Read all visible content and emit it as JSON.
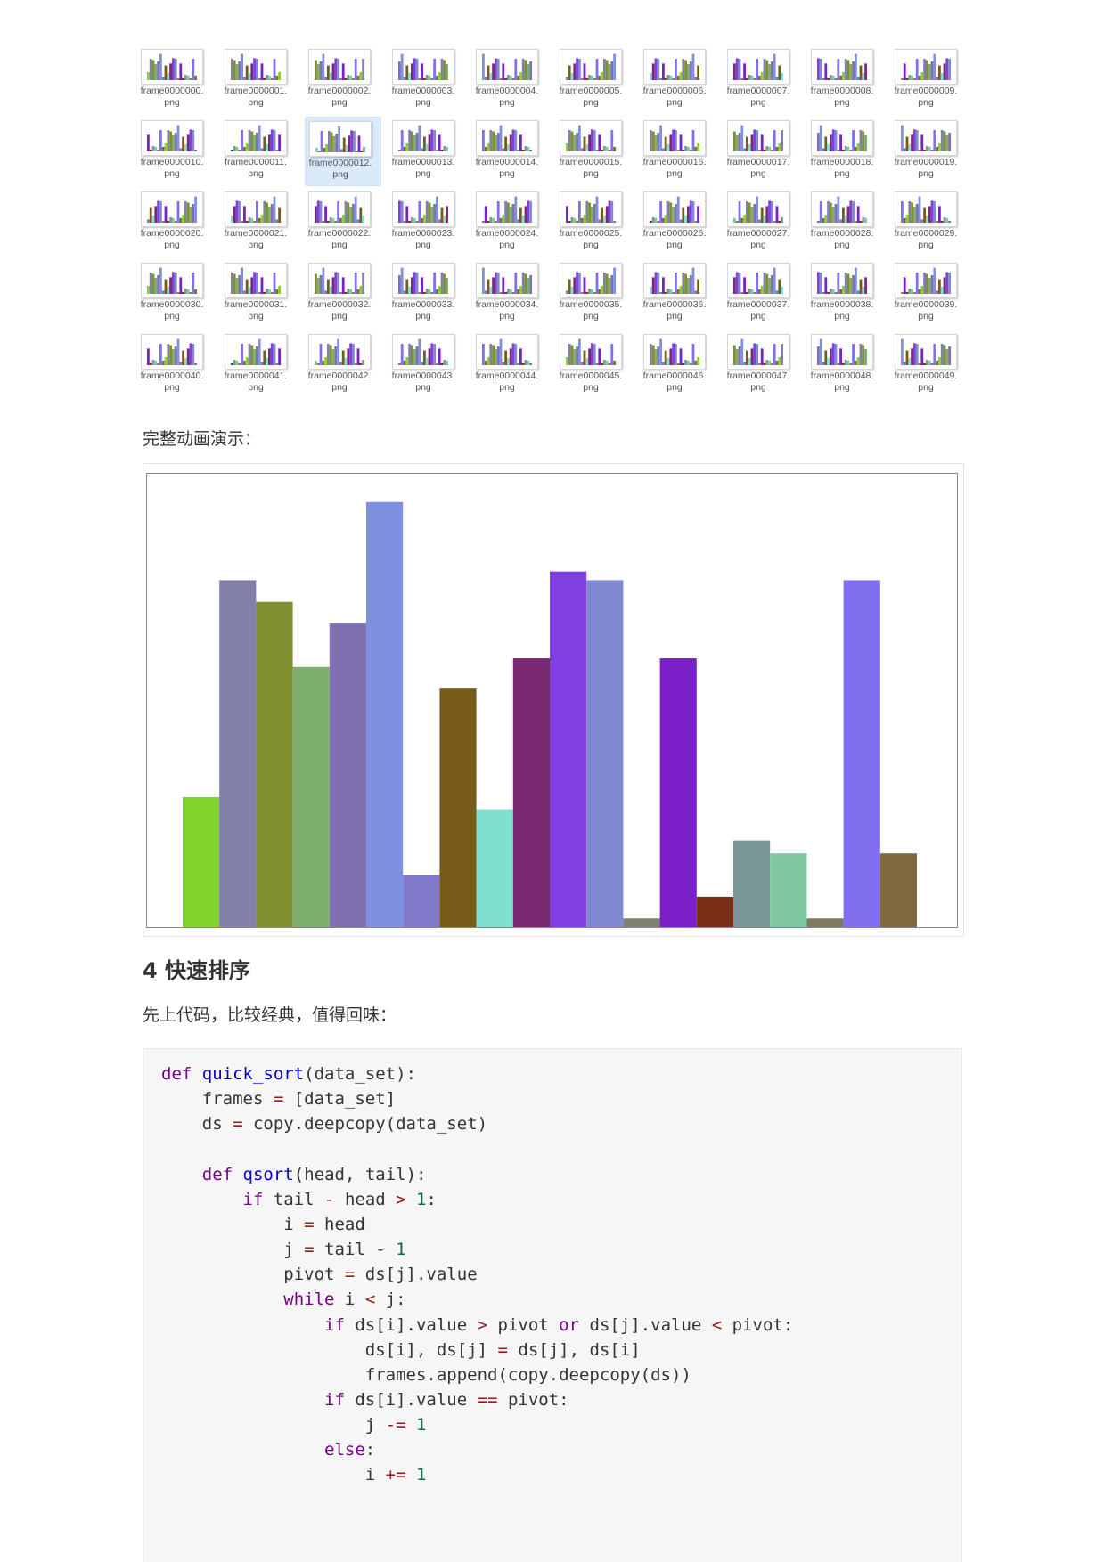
{
  "file_explorer": {
    "thumbnail_icon": "bar-chart-thumbnail-icon",
    "selected_index": 12,
    "files": [
      {
        "name_line1": "frame0000000.",
        "name_line2": "png"
      },
      {
        "name_line1": "frame0000001.",
        "name_line2": "png"
      },
      {
        "name_line1": "frame0000002.",
        "name_line2": "png"
      },
      {
        "name_line1": "frame0000003.",
        "name_line2": "png"
      },
      {
        "name_line1": "frame0000004.",
        "name_line2": "png"
      },
      {
        "name_line1": "frame0000005.",
        "name_line2": "png"
      },
      {
        "name_line1": "frame0000006.",
        "name_line2": "png"
      },
      {
        "name_line1": "frame0000007.",
        "name_line2": "png"
      },
      {
        "name_line1": "frame0000008.",
        "name_line2": "png"
      },
      {
        "name_line1": "frame0000009.",
        "name_line2": "png"
      },
      {
        "name_line1": "frame0000010.",
        "name_line2": "png"
      },
      {
        "name_line1": "frame0000011.",
        "name_line2": "png"
      },
      {
        "name_line1": "frame0000012.",
        "name_line2": "png"
      },
      {
        "name_line1": "frame0000013.",
        "name_line2": "png"
      },
      {
        "name_line1": "frame0000014.",
        "name_line2": "png"
      },
      {
        "name_line1": "frame0000015.",
        "name_line2": "png"
      },
      {
        "name_line1": "frame0000016.",
        "name_line2": "png"
      },
      {
        "name_line1": "frame0000017.",
        "name_line2": "png"
      },
      {
        "name_line1": "frame0000018.",
        "name_line2": "png"
      },
      {
        "name_line1": "frame0000019.",
        "name_line2": "png"
      },
      {
        "name_line1": "frame0000020.",
        "name_line2": "png"
      },
      {
        "name_line1": "frame0000021.",
        "name_line2": "png"
      },
      {
        "name_line1": "frame0000022.",
        "name_line2": "png"
      },
      {
        "name_line1": "frame0000023.",
        "name_line2": "png"
      },
      {
        "name_line1": "frame0000024.",
        "name_line2": "png"
      },
      {
        "name_line1": "frame0000025.",
        "name_line2": "png"
      },
      {
        "name_line1": "frame0000026.",
        "name_line2": "png"
      },
      {
        "name_line1": "frame0000027.",
        "name_line2": "png"
      },
      {
        "name_line1": "frame0000028.",
        "name_line2": "png"
      },
      {
        "name_line1": "frame0000029.",
        "name_line2": "png"
      },
      {
        "name_line1": "frame0000030.",
        "name_line2": "png"
      },
      {
        "name_line1": "frame0000031.",
        "name_line2": "png"
      },
      {
        "name_line1": "frame0000032.",
        "name_line2": "png"
      },
      {
        "name_line1": "frame0000033.",
        "name_line2": "png"
      },
      {
        "name_line1": "frame0000034.",
        "name_line2": "png"
      },
      {
        "name_line1": "frame0000035.",
        "name_line2": "png"
      },
      {
        "name_line1": "frame0000036.",
        "name_line2": "png"
      },
      {
        "name_line1": "frame0000037.",
        "name_line2": "png"
      },
      {
        "name_line1": "frame0000038.",
        "name_line2": "png"
      },
      {
        "name_line1": "frame0000039.",
        "name_line2": "png"
      },
      {
        "name_line1": "frame0000040.",
        "name_line2": "png"
      },
      {
        "name_line1": "frame0000041.",
        "name_line2": "png"
      },
      {
        "name_line1": "frame0000042.",
        "name_line2": "png"
      },
      {
        "name_line1": "frame0000043.",
        "name_line2": "png"
      },
      {
        "name_line1": "frame0000044.",
        "name_line2": "png"
      },
      {
        "name_line1": "frame0000045.",
        "name_line2": "png"
      },
      {
        "name_line1": "frame0000046.",
        "name_line2": "png"
      },
      {
        "name_line1": "frame0000047.",
        "name_line2": "png"
      },
      {
        "name_line1": "frame0000048.",
        "name_line2": "png"
      },
      {
        "name_line1": "frame0000049.",
        "name_line2": "png"
      }
    ]
  },
  "animation_caption": "完整动画演示：",
  "chart_data": {
    "type": "bar",
    "ylim": [
      0,
      100
    ],
    "values": [
      30,
      80,
      75,
      60,
      70,
      98,
      12,
      55,
      27,
      62,
      82,
      80,
      2,
      62,
      7,
      20,
      17,
      2,
      80,
      17
    ],
    "colors": [
      "#82d42a",
      "#8080a8",
      "#7f8f30",
      "#7dae6e",
      "#8070b0",
      "#8090e0",
      "#8078c8",
      "#7a5a1a",
      "#80e0d0",
      "#7a2a72",
      "#8040e0",
      "#8088d0",
      "#808070",
      "#7a20c8",
      "#7a3018",
      "#7a9898",
      "#80c8a0",
      "#807a60",
      "#8070f0",
      "#806840"
    ]
  },
  "section_heading": "4 快速排序",
  "intro_text": "先上代码，比较经典，值得回味：",
  "code_lines": [
    [
      {
        "t": "def",
        "c": "kw"
      },
      {
        "t": " "
      },
      {
        "t": "quick_sort",
        "c": "fn"
      },
      {
        "t": "(data_set):"
      }
    ],
    [
      {
        "t": "    frames "
      },
      {
        "t": "=",
        "c": "op"
      },
      {
        "t": " [data_set]"
      }
    ],
    [
      {
        "t": "    ds "
      },
      {
        "t": "=",
        "c": "op"
      },
      {
        "t": " copy.deepcopy(data_set)"
      }
    ],
    [
      {
        "t": ""
      }
    ],
    [
      {
        "t": "    "
      },
      {
        "t": "def",
        "c": "kw"
      },
      {
        "t": " "
      },
      {
        "t": "qsort",
        "c": "fn"
      },
      {
        "t": "(head, tail):"
      }
    ],
    [
      {
        "t": "        "
      },
      {
        "t": "if",
        "c": "kw"
      },
      {
        "t": " tail "
      },
      {
        "t": "-",
        "c": "op"
      },
      {
        "t": " head "
      },
      {
        "t": ">",
        "c": "op"
      },
      {
        "t": " "
      },
      {
        "t": "1",
        "c": "num"
      },
      {
        "t": ":"
      }
    ],
    [
      {
        "t": "            i "
      },
      {
        "t": "=",
        "c": "op"
      },
      {
        "t": " head"
      }
    ],
    [
      {
        "t": "            j "
      },
      {
        "t": "=",
        "c": "op"
      },
      {
        "t": " tail "
      },
      {
        "t": "-",
        "c": "op"
      },
      {
        "t": " "
      },
      {
        "t": "1",
        "c": "num"
      }
    ],
    [
      {
        "t": "            pivot "
      },
      {
        "t": "=",
        "c": "op"
      },
      {
        "t": " ds[j].value"
      }
    ],
    [
      {
        "t": "            "
      },
      {
        "t": "while",
        "c": "kw"
      },
      {
        "t": " i "
      },
      {
        "t": "<",
        "c": "op"
      },
      {
        "t": " j:"
      }
    ],
    [
      {
        "t": "                "
      },
      {
        "t": "if",
        "c": "kw"
      },
      {
        "t": " ds[i].value "
      },
      {
        "t": ">",
        "c": "op"
      },
      {
        "t": " pivot "
      },
      {
        "t": "or",
        "c": "kw"
      },
      {
        "t": " ds[j].value "
      },
      {
        "t": "<",
        "c": "op"
      },
      {
        "t": " pivot:"
      }
    ],
    [
      {
        "t": "                    ds[i], ds[j] "
      },
      {
        "t": "=",
        "c": "op"
      },
      {
        "t": " ds[j], ds[i]"
      }
    ],
    [
      {
        "t": "                    frames.append(copy.deepcopy(ds))"
      }
    ],
    [
      {
        "t": "                "
      },
      {
        "t": "if",
        "c": "kw"
      },
      {
        "t": " ds[i].value "
      },
      {
        "t": "==",
        "c": "op"
      },
      {
        "t": " pivot:"
      }
    ],
    [
      {
        "t": "                    j "
      },
      {
        "t": "-=",
        "c": "op"
      },
      {
        "t": " "
      },
      {
        "t": "1",
        "c": "num"
      }
    ],
    [
      {
        "t": "                "
      },
      {
        "t": "else",
        "c": "kw"
      },
      {
        "t": ":"
      }
    ],
    [
      {
        "t": "                    i "
      },
      {
        "t": "+=",
        "c": "op"
      },
      {
        "t": " "
      },
      {
        "t": "1",
        "c": "num"
      }
    ]
  ]
}
